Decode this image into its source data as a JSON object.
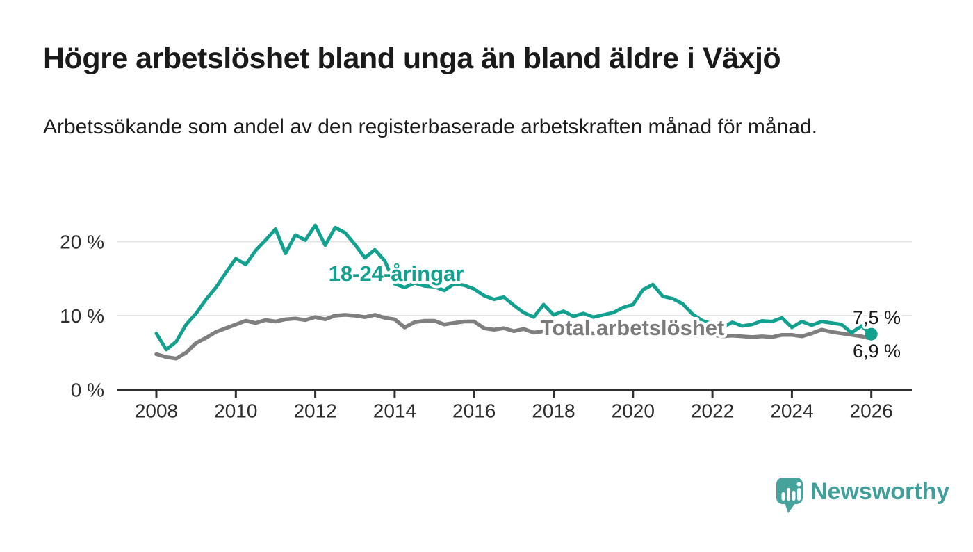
{
  "header": {
    "title": "Högre arbetslöshet bland unga än bland äldre i Växjö",
    "subtitle": "Arbetssökande som andel av den registerbaserade arbetskraften månad för månad."
  },
  "chart": {
    "annotations": {
      "youth_label": "18-24-åringar",
      "total_label": "Total arbetslöshet",
      "youth_end_label": "7,5 %",
      "total_end_label": "6,9 %"
    },
    "colors": {
      "youth": "#12a08f",
      "total": "#7f7f7f",
      "axis": "#2f2f2f",
      "grid": "#e2e2e2",
      "tick_text": "#2d2d2d",
      "end_label_text": "#1a1a1a",
      "background": "#ffffff"
    }
  },
  "chart_data": {
    "type": "line",
    "title": "Högre arbetslöshet bland unga än bland äldre i Växjö",
    "subtitle": "Arbetssökande som andel av den registerbaserade arbetskraften månad för månad.",
    "xlabel": "",
    "ylabel": "%",
    "x_start": 2008,
    "x_step_years": 0.25,
    "xlim": [
      2007,
      2027
    ],
    "ylim": [
      0,
      23
    ],
    "grid": "horizontal",
    "legend_position": "inline-labels",
    "y_ticks": [
      {
        "v": 0,
        "label": "0 %"
      },
      {
        "v": 10,
        "label": "10 %"
      },
      {
        "v": 20,
        "label": "20 %"
      }
    ],
    "x_ticks": [
      {
        "v": 2008,
        "label": "2008"
      },
      {
        "v": 2010,
        "label": "2010"
      },
      {
        "v": 2012,
        "label": "2012"
      },
      {
        "v": 2014,
        "label": "2014"
      },
      {
        "v": 2016,
        "label": "2016"
      },
      {
        "v": 2018,
        "label": "2018"
      },
      {
        "v": 2020,
        "label": "2020"
      },
      {
        "v": 2022,
        "label": "2022"
      },
      {
        "v": 2024,
        "label": "2024"
      },
      {
        "v": 2026,
        "label": "2026"
      }
    ],
    "series": [
      {
        "name": "18-24-åringar",
        "color": "#12a08f",
        "end_value_label": "7,5 %",
        "values": [
          7.6,
          5.4,
          6.5,
          8.8,
          10.3,
          12.2,
          13.8,
          15.8,
          17.7,
          16.9,
          18.8,
          20.2,
          21.7,
          18.4,
          20.9,
          20.2,
          22.2,
          19.5,
          21.9,
          21.2,
          19.6,
          17.8,
          18.9,
          17.4,
          14.3,
          13.8,
          14.4,
          14.0,
          13.9,
          13.4,
          14.3,
          14.1,
          13.6,
          12.7,
          12.2,
          12.5,
          11.4,
          10.4,
          9.8,
          11.5,
          10.1,
          10.6,
          9.9,
          10.3,
          9.8,
          10.1,
          10.4,
          11.1,
          11.5,
          13.5,
          14.2,
          12.6,
          12.3,
          11.6,
          10.2,
          9.3,
          8.9,
          8.4,
          9.1,
          8.6,
          8.8,
          9.3,
          9.2,
          9.7,
          8.4,
          9.2,
          8.7,
          9.2,
          9.0,
          8.8,
          7.7,
          8.6,
          7.5
        ]
      },
      {
        "name": "Total arbetslöshet",
        "color": "#7f7f7f",
        "end_value_label": "6,9 %",
        "values": [
          4.8,
          4.4,
          4.2,
          5.0,
          6.3,
          7.0,
          7.8,
          8.3,
          8.8,
          9.3,
          9.0,
          9.4,
          9.2,
          9.5,
          9.6,
          9.4,
          9.8,
          9.5,
          10.0,
          10.1,
          10.0,
          9.8,
          10.1,
          9.7,
          9.5,
          8.4,
          9.1,
          9.3,
          9.3,
          8.8,
          9.0,
          9.2,
          9.2,
          8.3,
          8.1,
          8.3,
          7.9,
          8.2,
          7.7,
          7.9,
          7.8,
          7.9,
          7.7,
          7.8,
          7.6,
          7.7,
          7.8,
          7.9,
          8.0,
          8.6,
          8.8,
          8.5,
          8.3,
          8.0,
          7.8,
          7.6,
          7.4,
          7.2,
          7.3,
          7.2,
          7.1,
          7.2,
          7.1,
          7.4,
          7.4,
          7.2,
          7.6,
          8.1,
          7.8,
          7.6,
          7.4,
          7.2,
          6.9
        ]
      }
    ]
  },
  "footer": {
    "brand": "Newsworthy",
    "logo_icon": "speech-bubble-bar-chart"
  }
}
